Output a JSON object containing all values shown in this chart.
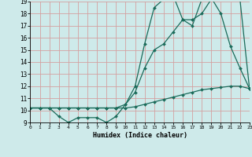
{
  "xlabel": "Humidex (Indice chaleur)",
  "bg_color": "#ceeaea",
  "grid_color": "#d4a0a0",
  "line_color": "#1a6b5a",
  "xmin": 0,
  "xmax": 23,
  "ymin": 9,
  "ymax": 19,
  "line1_x": [
    0,
    1,
    2,
    3,
    4,
    5,
    6,
    7,
    8,
    9,
    10,
    11,
    12,
    13,
    14,
    15,
    16,
    17,
    18,
    19,
    20,
    21,
    22,
    23
  ],
  "line1_y": [
    10.2,
    10.2,
    10.2,
    9.5,
    9.0,
    9.4,
    9.4,
    9.4,
    9.0,
    9.5,
    10.5,
    12.0,
    15.5,
    18.5,
    19.2,
    19.5,
    17.5,
    17.0,
    19.2,
    19.3,
    18.0,
    15.3,
    13.5,
    11.8
  ],
  "line2_x": [
    0,
    1,
    2,
    3,
    4,
    5,
    6,
    7,
    8,
    9,
    10,
    11,
    12,
    13,
    14,
    15,
    16,
    17,
    18,
    19,
    20,
    21,
    22,
    23
  ],
  "line2_y": [
    10.2,
    10.2,
    10.2,
    10.2,
    10.2,
    10.2,
    10.2,
    10.2,
    10.2,
    10.2,
    10.5,
    11.5,
    13.5,
    15.0,
    15.5,
    16.5,
    17.5,
    17.5,
    18.0,
    19.2,
    19.3,
    19.2,
    19.2,
    11.8
  ],
  "line3_x": [
    0,
    1,
    2,
    3,
    4,
    5,
    6,
    7,
    8,
    9,
    10,
    11,
    12,
    13,
    14,
    15,
    16,
    17,
    18,
    19,
    20,
    21,
    22,
    23
  ],
  "line3_y": [
    10.2,
    10.2,
    10.2,
    10.2,
    10.2,
    10.2,
    10.2,
    10.2,
    10.2,
    10.2,
    10.2,
    10.3,
    10.5,
    10.7,
    10.9,
    11.1,
    11.3,
    11.5,
    11.7,
    11.8,
    11.9,
    12.0,
    12.0,
    11.8
  ]
}
